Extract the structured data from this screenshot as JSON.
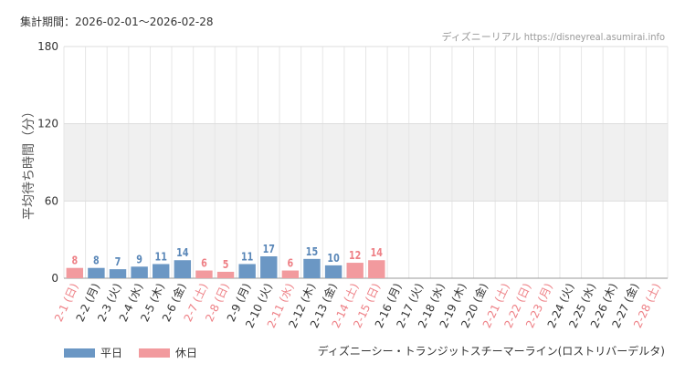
{
  "header": {
    "period": "集計期間：2026-02-01～2026-02-28",
    "source": "ディズニーリアル https://disneyreal.asumirai.info"
  },
  "attraction_name": "ディズニーシー・トランジットスチーマーライン(ロストリバーデルタ)",
  "legend": {
    "weekday_label": "平日",
    "holiday_label": "休日"
  },
  "colors": {
    "weekday": "#6b97c4",
    "holiday": "#f29a9e",
    "weekday_text": "#5a87b8",
    "holiday_text": "#ee8086",
    "band": "#f0f0f0",
    "grid": "#e6e6e6"
  },
  "chart_data": {
    "type": "bar",
    "ylabel": "平均待ち時間（分）",
    "ylim": [
      0,
      180
    ],
    "yticks": [
      0,
      60,
      120,
      180
    ],
    "band": [
      60,
      120
    ],
    "categories": [
      "2-1 (日)",
      "2-2 (月)",
      "2-3 (火)",
      "2-4 (水)",
      "2-5 (木)",
      "2-6 (金)",
      "2-7 (土)",
      "2-8 (日)",
      "2-9 (月)",
      "2-10 (火)",
      "2-11 (水)",
      "2-12 (木)",
      "2-13 (金)",
      "2-14 (土)",
      "2-15 (日)",
      "2-16 (月)",
      "2-17 (火)",
      "2-18 (水)",
      "2-19 (木)",
      "2-20 (金)",
      "2-21 (土)",
      "2-22 (日)",
      "2-23 (月)",
      "2-24 (火)",
      "2-25 (水)",
      "2-26 (木)",
      "2-27 (金)",
      "2-28 (土)"
    ],
    "values": [
      8,
      8,
      7,
      9,
      11,
      14,
      6,
      5,
      11,
      17,
      6,
      15,
      10,
      12,
      14,
      null,
      null,
      null,
      null,
      null,
      null,
      null,
      null,
      null,
      null,
      null,
      null,
      null
    ],
    "day_type": [
      "holiday",
      "weekday",
      "weekday",
      "weekday",
      "weekday",
      "weekday",
      "holiday",
      "holiday",
      "weekday",
      "weekday",
      "holiday",
      "weekday",
      "weekday",
      "holiday",
      "holiday",
      "weekday",
      "weekday",
      "weekday",
      "weekday",
      "weekday",
      "holiday",
      "holiday",
      "holiday",
      "weekday",
      "weekday",
      "weekday",
      "weekday",
      "holiday"
    ]
  }
}
